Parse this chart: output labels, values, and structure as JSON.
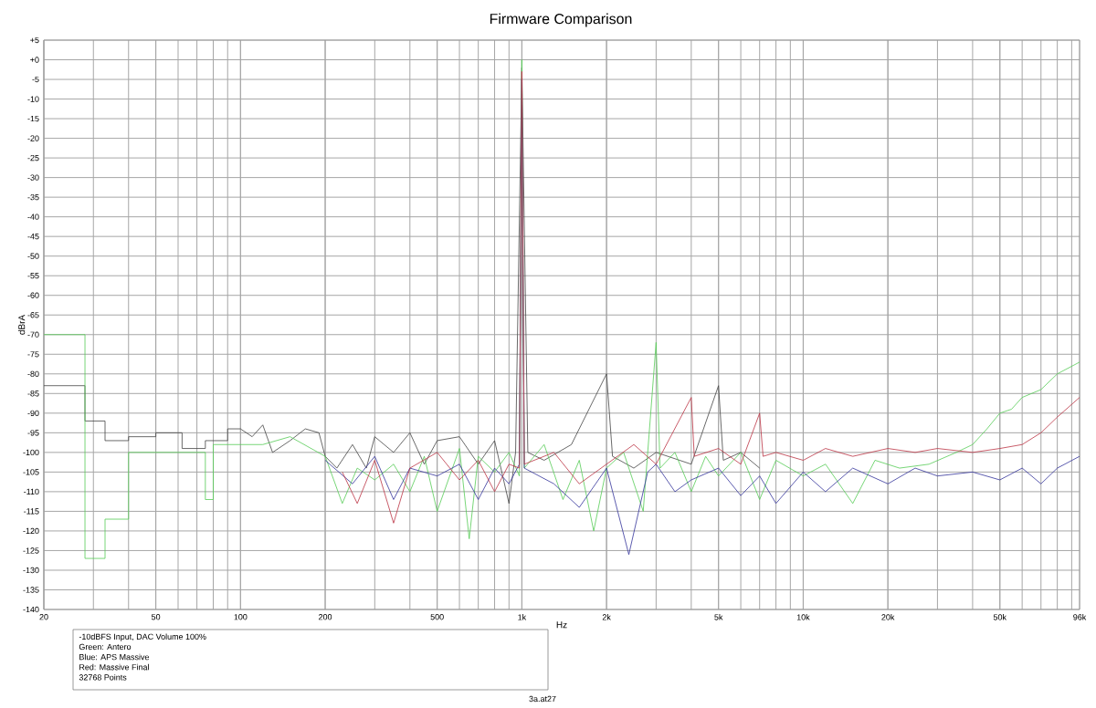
{
  "chart_data": {
    "type": "line",
    "title": "Firmware Comparison",
    "xlabel": "Hz",
    "ylabel": "dBrA",
    "log": "x",
    "grid": true,
    "marker": "none",
    "line_style": "solid",
    "xlim": [
      20,
      96000
    ],
    "xticks": [
      20,
      50,
      100,
      200,
      500,
      {
        "value": 1000,
        "label": "1k"
      },
      {
        "value": 2000,
        "label": "2k"
      },
      {
        "value": 5000,
        "label": "5k"
      },
      {
        "value": 10000,
        "label": "10k"
      },
      {
        "value": 20000,
        "label": "20k"
      },
      {
        "value": 50000,
        "label": "50k"
      },
      {
        "value": 96000,
        "label": "96k"
      }
    ],
    "ylim": [
      -140,
      5
    ],
    "yticks": [
      {
        "value": 5,
        "label": "+5"
      },
      {
        "value": 0,
        "label": "+0"
      },
      -5,
      -10,
      -15,
      -20,
      -25,
      -30,
      -35,
      -40,
      -45,
      -50,
      -55,
      -60,
      -65,
      -70,
      -75,
      -80,
      -85,
      -90,
      -95,
      -100,
      -105,
      -110,
      -115,
      -120,
      -125,
      -130,
      -135,
      -140
    ],
    "annotations": [
      "-10dBFS Input, DAC Volume 100%",
      "Green: Antero",
      "Blue: APS Massive",
      "Red: Massive Final",
      "32768 Points",
      "3a.at27"
    ],
    "series": [
      {
        "color": "#444444",
        "x": [
          20,
          28,
          28,
          33,
          33,
          40,
          40,
          50,
          50,
          62,
          62,
          75,
          75,
          90,
          90,
          100,
          110,
          120,
          130,
          150,
          170,
          190,
          200,
          220,
          250,
          280,
          300,
          350,
          400,
          450,
          500,
          600,
          700,
          800,
          900,
          950,
          1000,
          1050,
          1200,
          1500,
          2000,
          2100,
          2500,
          3000,
          4000,
          5000,
          5200,
          6000,
          7000
        ],
        "values": [
          -83,
          -83,
          -92,
          -92,
          -97,
          -97,
          -96,
          -96,
          -95,
          -95,
          -99,
          -99,
          -97,
          -97,
          -94,
          -94,
          -96,
          -93,
          -100,
          -97,
          -94,
          -95,
          -101,
          -104,
          -98,
          -104,
          -96,
          -100,
          -95,
          -103,
          -97,
          -96,
          -103,
          -97,
          -113,
          -100,
          -2,
          -100,
          -102,
          -98,
          -80,
          -101,
          -104,
          -100,
          -103,
          -83,
          -102,
          -100,
          -104
        ]
      },
      {
        "color": "#55cc55",
        "x": [
          20,
          28,
          28,
          33,
          33,
          40,
          40,
          75,
          75,
          80,
          80,
          120,
          150,
          200,
          230,
          260,
          300,
          350,
          400,
          450,
          500,
          600,
          650,
          700,
          800,
          900,
          980,
          1000,
          1020,
          1200,
          1400,
          1600,
          1800,
          2000,
          2300,
          2700,
          3000,
          3100,
          3500,
          4000,
          4500,
          5000,
          6000,
          7000,
          8000,
          10000,
          12000,
          15000,
          18000,
          22000,
          28000,
          35000,
          40000,
          45000,
          50000,
          55000,
          60000,
          70000,
          80000,
          96000
        ],
        "values": [
          -70,
          -70,
          -127,
          -127,
          -117,
          -117,
          -100,
          -100,
          -112,
          -112,
          -98,
          -98,
          -96,
          -101,
          -113,
          -104,
          -107,
          -103,
          -110,
          -101,
          -115,
          -99,
          -122,
          -101,
          -105,
          -100,
          -106,
          0,
          -104,
          -98,
          -112,
          -102,
          -120,
          -104,
          -100,
          -115,
          -72,
          -104,
          -100,
          -110,
          -101,
          -106,
          -100,
          -112,
          -102,
          -106,
          -103,
          -113,
          -102,
          -104,
          -103,
          -100,
          -98,
          -94,
          -90,
          -89,
          -86,
          -84,
          -80,
          -77
        ]
      },
      {
        "color": "#33339a",
        "x": [
          200,
          250,
          300,
          350,
          400,
          500,
          600,
          700,
          800,
          900,
          980,
          1000,
          1020,
          1300,
          1600,
          2000,
          2400,
          2800,
          3000,
          3500,
          4000,
          5000,
          6000,
          7000,
          8000,
          10000,
          12000,
          15000,
          20000,
          25000,
          30000,
          40000,
          50000,
          60000,
          70000,
          80000,
          96000
        ],
        "values": [
          -102,
          -108,
          -101,
          -112,
          -104,
          -106,
          -103,
          -112,
          -104,
          -108,
          -103,
          -5,
          -104,
          -108,
          -114,
          -104,
          -126,
          -105,
          -103,
          -110,
          -107,
          -104,
          -111,
          -106,
          -113,
          -105,
          -110,
          -104,
          -108,
          -104,
          -106,
          -105,
          -107,
          -104,
          -108,
          -104,
          -101
        ]
      },
      {
        "color": "#bb3344",
        "x": [
          230,
          260,
          300,
          350,
          400,
          500,
          600,
          700,
          800,
          900,
          980,
          1000,
          1020,
          1300,
          1600,
          2000,
          2500,
          3000,
          4000,
          4100,
          5000,
          6000,
          7000,
          7200,
          8000,
          10000,
          12000,
          15000,
          20000,
          25000,
          30000,
          40000,
          50000,
          60000,
          70000,
          80000,
          96000
        ],
        "values": [
          -105,
          -113,
          -102,
          -118,
          -104,
          -100,
          -107,
          -102,
          -110,
          -103,
          -104,
          -3,
          -103,
          -100,
          -108,
          -103,
          -98,
          -103,
          -86,
          -101,
          -99,
          -103,
          -90,
          -101,
          -100,
          -102,
          -99,
          -101,
          -99,
          -100,
          -99,
          -100,
          -99,
          -98,
          -95,
          -91,
          -86
        ]
      }
    ]
  }
}
